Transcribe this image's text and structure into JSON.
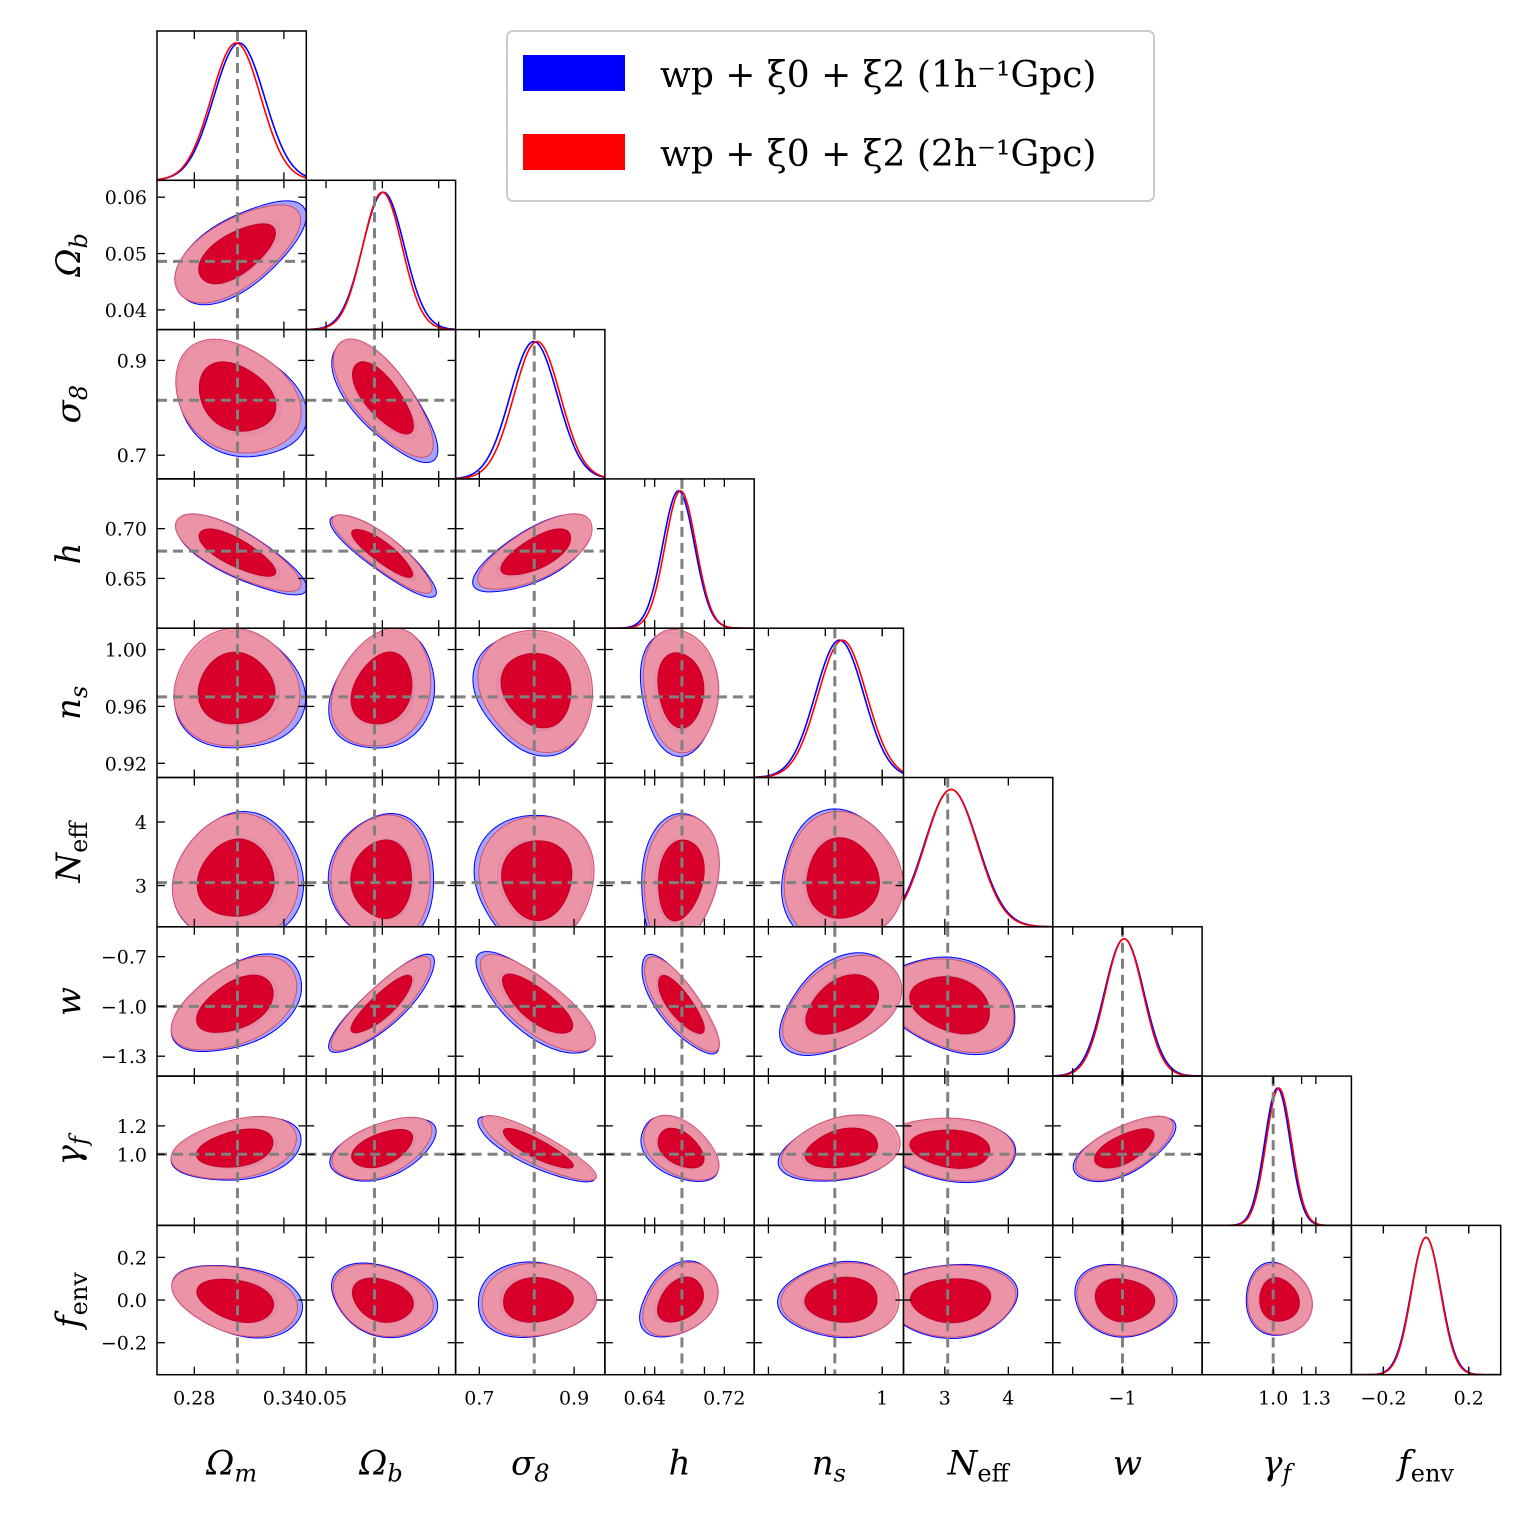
{
  "chart_data": {
    "type": "corner",
    "colors": {
      "series_1": "#0000ff",
      "series_2": "#ff0000",
      "fiducial_line": "#808080"
    },
    "series": [
      {
        "name": "wp + ξ0 + ξ2 (1h⁻¹Gpc)",
        "color": "#0000ff"
      },
      {
        "name": "wp + ξ0 + ξ2 (2h⁻¹Gpc)",
        "color": "#ff0000"
      }
    ],
    "legend_position": "top-right",
    "parameters": [
      {
        "label": "Ωm",
        "range": [
          0.255,
          0.355
        ],
        "fiducial": 0.3089,
        "ticks": [
          0.28,
          0.34
        ],
        "tick_labels": [
          "0.28",
          "0.34"
        ],
        "peak": [
          0.31,
          0.308
        ],
        "sigma": [
          0.017,
          0.0165
        ]
      },
      {
        "label": "Ωb",
        "range": [
          0.0365,
          0.063
        ],
        "fiducial": 0.0486,
        "ticks": [
          0.04,
          0.05,
          0.06
        ],
        "tick_labels": [
          "0.04",
          "0.05",
          "0.06"
        ],
        "bottom_tick_labels": [
          "0.05"
        ],
        "peak": [
          0.0502,
          0.05
        ],
        "sigma": [
          0.0037,
          0.0035
        ]
      },
      {
        "label": "σ8",
        "range": [
          0.65,
          0.965
        ],
        "fiducial": 0.8159,
        "ticks": [
          0.7,
          0.9
        ],
        "tick_labels": [
          "0.7",
          "0.9"
        ],
        "peak": [
          0.815,
          0.822
        ],
        "sigma": [
          0.05,
          0.049
        ]
      },
      {
        "label": "h",
        "range": [
          0.6,
          0.75
        ],
        "fiducial": 0.6774,
        "ticks": [
          0.65,
          0.7
        ],
        "tick_labels": [
          "0.65",
          "0.70"
        ],
        "bottom_ticks": [
          0.64,
          0.72
        ],
        "bottom_tick_labels": [
          "0.64",
          "0.72"
        ],
        "peak": [
          0.674,
          0.676
        ],
        "sigma": [
          0.016,
          0.0155
        ]
      },
      {
        "label": "ns",
        "range": [
          0.91,
          1.015
        ],
        "fiducial": 0.9667,
        "ticks": [
          0.92,
          0.96,
          1.0
        ],
        "tick_labels": [
          "0.92",
          "0.96",
          "1.00"
        ],
        "bottom_ticks": [
          1.0
        ],
        "bottom_tick_labels": [
          "1"
        ],
        "peak": [
          0.97,
          0.972
        ],
        "sigma": [
          0.017,
          0.017
        ]
      },
      {
        "label": "Neff",
        "range": [
          2.35,
          4.7
        ],
        "fiducial": 3.046,
        "ticks": [
          3,
          4
        ],
        "tick_labels": [
          "3",
          "4"
        ],
        "peak": [
          3.1,
          3.1
        ],
        "sigma": [
          0.42,
          0.41
        ]
      },
      {
        "label": "w",
        "range": [
          -1.42,
          -0.52
        ],
        "fiducial": -1.0,
        "ticks": [
          -1.3,
          -1.0,
          -0.7
        ],
        "tick_labels": [
          "−1.3",
          "−1.0",
          "−0.7"
        ],
        "bottom_ticks": [
          -1.0
        ],
        "bottom_tick_labels": [
          "−1"
        ],
        "peak": [
          -0.99,
          -0.99
        ],
        "sigma": [
          0.12,
          0.115
        ]
      },
      {
        "label": "γf",
        "range": [
          0.5,
          1.55
        ],
        "fiducial": 1.0,
        "ticks": [
          1.0,
          1.2
        ],
        "tick_labels": [
          "1.0",
          "1.2"
        ],
        "bottom_ticks": [
          1.0,
          1.3
        ],
        "bottom_tick_labels": [
          "1.0",
          "1.3"
        ],
        "peak": [
          1.03,
          1.04
        ],
        "sigma": [
          0.09,
          0.09
        ]
      },
      {
        "label": "fenv",
        "range": [
          -0.35,
          0.35
        ],
        "fiducial": null,
        "ticks": [
          -0.2,
          0.0,
          0.2
        ],
        "tick_labels": [
          "−0.2",
          "0.0",
          "0.2"
        ],
        "bottom_ticks": [
          -0.2,
          0.2
        ],
        "bottom_tick_labels": [
          "−0.2",
          "0.2"
        ],
        "peak": [
          0.0,
          0.0
        ],
        "sigma": [
          0.07,
          0.068
        ]
      }
    ],
    "correlations": {
      "1-0": 0.6,
      "2-0": -0.25,
      "2-1": -0.7,
      "3-0": -0.75,
      "3-1": -0.85,
      "3-2": 0.7,
      "4-0": 0.0,
      "4-1": 0.25,
      "4-2": -0.1,
      "4-3": -0.1,
      "5-0": 0.05,
      "5-1": 0.05,
      "5-2": 0.05,
      "5-3": 0.2,
      "5-4": -0.05,
      "6-0": 0.45,
      "6-1": 0.85,
      "6-2": -0.75,
      "6-3": -0.8,
      "6-4": 0.4,
      "6-5": -0.3,
      "7-0": 0.3,
      "7-1": 0.5,
      "7-2": -0.85,
      "7-3": -0.45,
      "7-4": 0.25,
      "7-5": -0.2,
      "7-6": 0.6,
      "8-0": -0.3,
      "8-1": -0.2,
      "8-2": 0.1,
      "8-3": 0.35,
      "8-4": 0.0,
      "8-5": 0.0,
      "8-6": -0.1,
      "8-7": -0.05
    }
  }
}
